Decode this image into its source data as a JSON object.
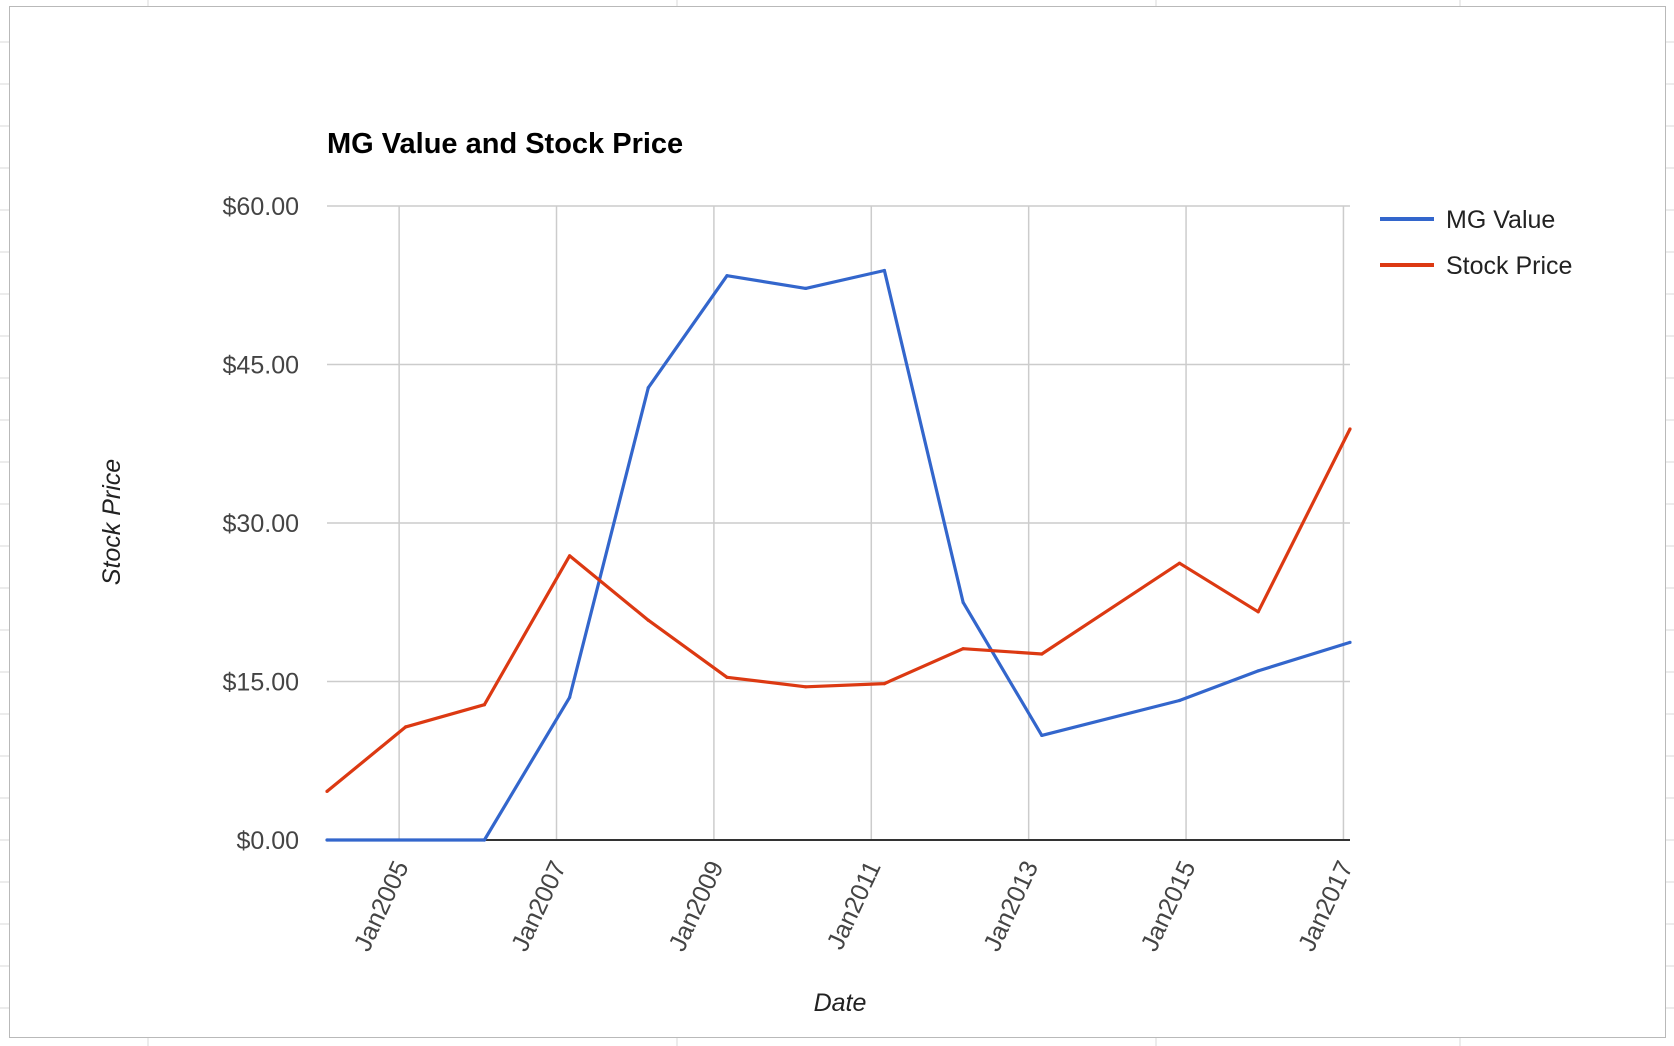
{
  "chart_data": {
    "type": "line",
    "title": "MG Value and Stock Price",
    "xlabel": "Date",
    "ylabel": "Stock Price",
    "ylim": [
      0,
      60
    ],
    "y_ticks": [
      "$0.00",
      "$15.00",
      "$30.00",
      "$45.00",
      "$60.00"
    ],
    "y_tick_values": [
      0,
      15,
      30,
      45,
      60
    ],
    "x_ticks": [
      "Jan2005",
      "Jan2007",
      "Jan2009",
      "Jan2011",
      "Jan2013",
      "Jan2015",
      "Jan2017"
    ],
    "x_tick_dates": [
      "2005-01",
      "2007-01",
      "2009-01",
      "2011-01",
      "2013-01",
      "2015-01",
      "2017-01"
    ],
    "xlim": [
      "2004-02",
      "2017-02"
    ],
    "grid": true,
    "legend_position": "right",
    "series": [
      {
        "name": "MG Value",
        "color": "#3366cc",
        "points": [
          {
            "x": "2004-02",
            "y": 0
          },
          {
            "x": "2006-02",
            "y": 0
          },
          {
            "x": "2007-03",
            "y": 13.5
          },
          {
            "x": "2008-03",
            "y": 42.8
          },
          {
            "x": "2009-03",
            "y": 53.4
          },
          {
            "x": "2010-03",
            "y": 52.2
          },
          {
            "x": "2011-03",
            "y": 53.9
          },
          {
            "x": "2012-03",
            "y": 22.5
          },
          {
            "x": "2013-03",
            "y": 9.9
          },
          {
            "x": "2014-12",
            "y": 13.2
          },
          {
            "x": "2015-12",
            "y": 16.0
          },
          {
            "x": "2017-02",
            "y": 18.7
          }
        ]
      },
      {
        "name": "Stock Price",
        "color": "#dc3912",
        "points": [
          {
            "x": "2004-02",
            "y": 4.6
          },
          {
            "x": "2005-02",
            "y": 10.7
          },
          {
            "x": "2006-02",
            "y": 12.8
          },
          {
            "x": "2007-03",
            "y": 26.9
          },
          {
            "x": "2008-03",
            "y": 20.8
          },
          {
            "x": "2009-03",
            "y": 15.4
          },
          {
            "x": "2010-03",
            "y": 14.5
          },
          {
            "x": "2011-03",
            "y": 14.8
          },
          {
            "x": "2012-03",
            "y": 18.1
          },
          {
            "x": "2013-03",
            "y": 17.6
          },
          {
            "x": "2014-12",
            "y": 26.2
          },
          {
            "x": "2015-12",
            "y": 21.6
          },
          {
            "x": "2017-02",
            "y": 38.9
          }
        ]
      }
    ]
  }
}
